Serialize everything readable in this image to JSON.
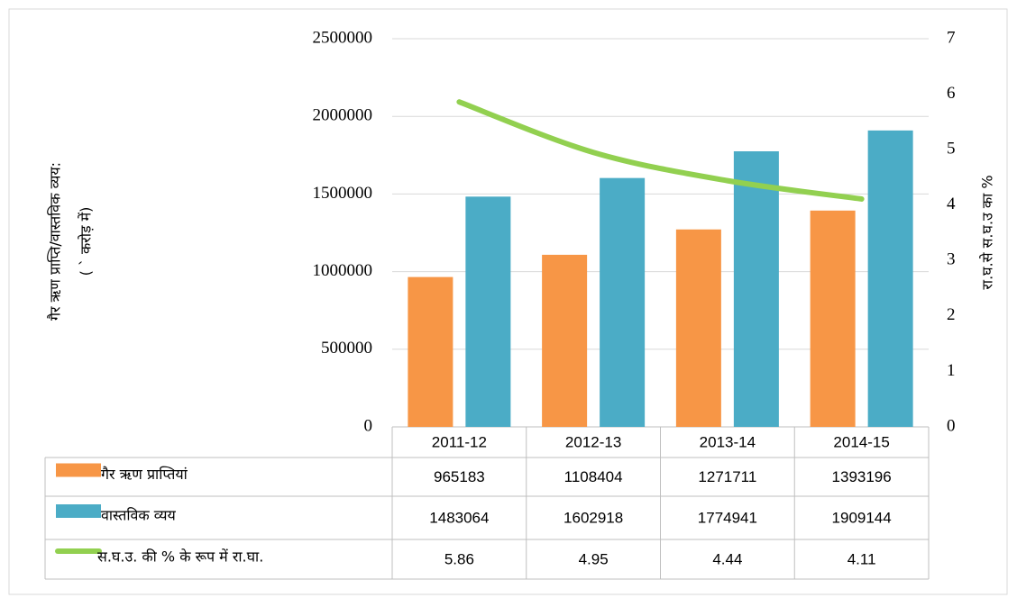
{
  "chart_data": {
    "type": "bar",
    "y_label_lines": [
      "गैर ऋण प्राप्ति/वास्तविक व्यय:",
      "( ` करोड़ में)"
    ],
    "y2_label": "रा.घ.से स.घ.उ का %",
    "categories": [
      "2011-12",
      "2012-13",
      "2013-14",
      "2014-15"
    ],
    "series": [
      {
        "name": "गैर ऋण प्राप्तियां",
        "type": "bar",
        "color": "#f79646",
        "values": [
          965183,
          1108404,
          1271711,
          1393196
        ]
      },
      {
        "name": "वास्तविक व्यय",
        "type": "bar",
        "color": "#4bacc6",
        "values": [
          1483064,
          1602918,
          1774941,
          1909144
        ]
      },
      {
        "name": "स.घ.उ. की % के रूप में रा.घा.",
        "type": "line",
        "axis": "y2",
        "color": "#92d050",
        "values": [
          5.86,
          4.95,
          4.44,
          4.11
        ]
      }
    ],
    "ylim": [
      0,
      2500000
    ],
    "yticks": [
      0,
      500000,
      1000000,
      1500000,
      2000000,
      2500000
    ],
    "y2lim": [
      0,
      7
    ],
    "y2ticks": [
      0,
      1,
      2,
      3,
      4,
      5,
      6,
      7
    ],
    "grid": true,
    "data_table": true
  }
}
